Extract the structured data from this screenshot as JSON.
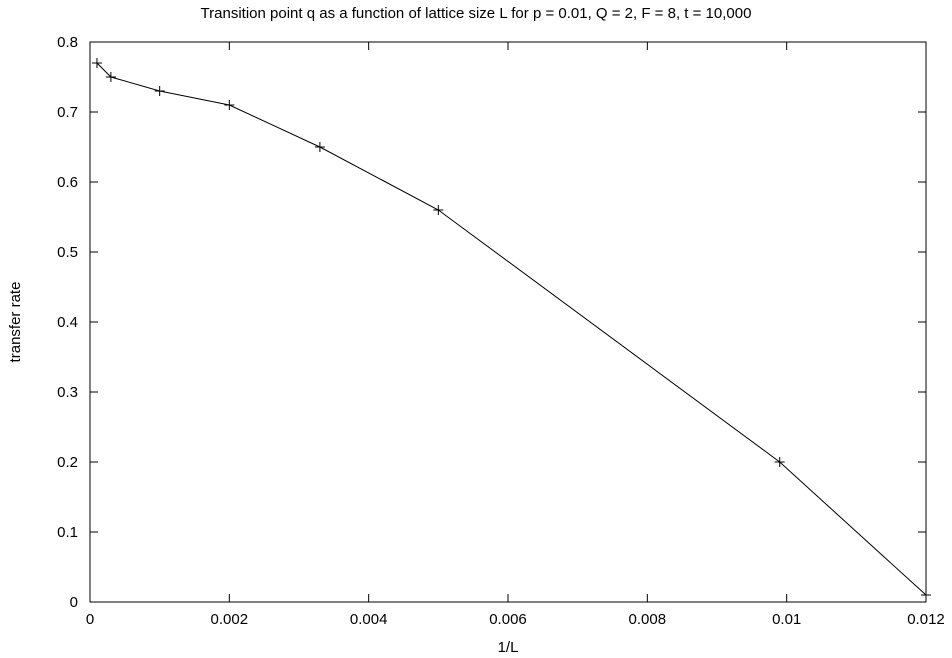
{
  "chart_data": {
    "type": "line",
    "title": "Transition point q as a function of lattice size L for p = 0.01, Q = 2, F = 8, t = 10,000",
    "xlabel": "1/L",
    "ylabel": "transfer rate",
    "xlim": [
      0,
      0.012
    ],
    "ylim": [
      0,
      0.8
    ],
    "x_ticks": [
      "0",
      "0.002",
      "0.004",
      "0.006",
      "0.008",
      "0.01",
      "0.012"
    ],
    "y_ticks": [
      "0",
      "0.1",
      "0.2",
      "0.3",
      "0.4",
      "0.5",
      "0.6",
      "0.7",
      "0.8"
    ],
    "grid": false,
    "marker": "plus",
    "color": "#000000",
    "series": [
      {
        "x": [
          0.0001,
          0.0003,
          0.001,
          0.002,
          0.0033,
          0.005,
          0.0099,
          0.012
        ],
        "y": [
          0.77,
          0.75,
          0.73,
          0.71,
          0.65,
          0.56,
          0.2,
          0.01
        ]
      }
    ]
  }
}
